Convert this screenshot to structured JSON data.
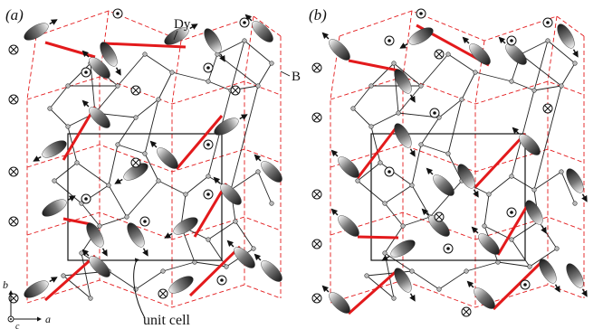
{
  "figure": {
    "panels": [
      {
        "label": "(a)"
      },
      {
        "label": "(b)"
      }
    ],
    "annotations": {
      "dy": "Dy",
      "b_atom": "B",
      "unit_cell": "unit cell"
    },
    "axes": {
      "vertical": "b",
      "horizontal": "a",
      "out_of_plane": "c"
    },
    "legend_symbols": [
      "dot-in-circle-icon",
      "cross-in-circle-icon"
    ],
    "colors": {
      "dy_bond": "#e31a1c",
      "dashed_lattice": "#e31a1c",
      "boron_net": "#222222",
      "ellipsoid_dark": "#222222",
      "ellipsoid_light": "#f2f2f2"
    }
  }
}
